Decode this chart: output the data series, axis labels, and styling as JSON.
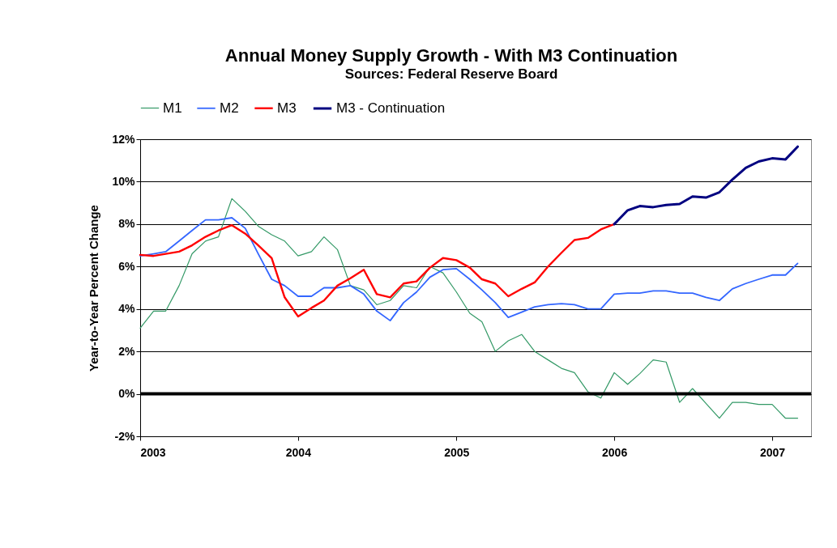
{
  "chart_data": {
    "type": "line",
    "title": "Annual Money Supply Growth - With M3 Continuation",
    "subtitle": "Sources: Federal Reserve Board",
    "ylabel": "Year-to-Year Percent Change",
    "x": [
      "2003-01",
      "2003-02",
      "2003-03",
      "2003-04",
      "2003-05",
      "2003-06",
      "2003-07",
      "2003-08",
      "2003-09",
      "2003-10",
      "2003-11",
      "2003-12",
      "2004-01",
      "2004-02",
      "2004-03",
      "2004-04",
      "2004-05",
      "2004-06",
      "2004-07",
      "2004-08",
      "2004-09",
      "2004-10",
      "2004-11",
      "2004-12",
      "2005-01",
      "2005-02",
      "2005-03",
      "2005-04",
      "2005-05",
      "2005-06",
      "2005-07",
      "2005-08",
      "2005-09",
      "2005-10",
      "2005-11",
      "2005-12",
      "2006-01",
      "2006-02",
      "2006-03",
      "2006-04",
      "2006-05",
      "2006-06",
      "2006-07",
      "2006-08",
      "2006-09",
      "2006-10",
      "2006-11",
      "2006-12",
      "2007-01",
      "2007-02",
      "2007-03"
    ],
    "series": [
      {
        "name": "M1",
        "color": "#339966",
        "values": [
          3.1,
          3.9,
          3.9,
          5.1,
          6.6,
          7.2,
          7.4,
          9.2,
          8.6,
          7.9,
          7.5,
          7.2,
          6.5,
          6.7,
          7.4,
          6.8,
          5.1,
          4.9,
          4.2,
          4.4,
          5.1,
          5.0,
          6.0,
          5.7,
          4.8,
          3.8,
          3.4,
          2.0,
          2.5,
          2.8,
          2.0,
          1.6,
          1.2,
          1.0,
          0.1,
          -0.2,
          1.0,
          0.45,
          0.95,
          1.6,
          1.5,
          -0.4,
          0.25,
          -0.45,
          -1.15,
          -0.4,
          -0.4,
          -0.5,
          -0.5,
          -1.15,
          -1.15
        ]
      },
      {
        "name": "M2",
        "color": "#3366ff",
        "values": [
          6.5,
          6.6,
          6.7,
          7.2,
          7.7,
          8.2,
          8.2,
          8.3,
          7.8,
          6.6,
          5.4,
          5.1,
          4.6,
          4.6,
          5.0,
          5.0,
          5.1,
          4.7,
          3.9,
          3.45,
          4.3,
          4.8,
          5.5,
          5.85,
          5.9,
          5.4,
          4.9,
          4.3,
          3.6,
          3.85,
          4.1,
          4.2,
          4.25,
          4.2,
          4.0,
          4.0,
          4.7,
          4.75,
          4.75,
          4.85,
          4.85,
          4.75,
          4.75,
          4.55,
          4.4,
          4.95,
          5.2,
          5.4,
          5.6,
          5.6,
          6.15
        ]
      },
      {
        "name": "M3",
        "color": "#ff0000",
        "values": [
          6.55,
          6.5,
          6.6,
          6.7,
          7.0,
          7.4,
          7.7,
          7.95,
          7.55,
          7.0,
          6.4,
          4.55,
          3.65,
          4.05,
          4.4,
          5.1,
          5.45,
          5.85,
          4.7,
          4.55,
          5.2,
          5.3,
          5.95,
          6.4,
          6.3,
          5.95,
          5.4,
          5.2,
          4.6,
          4.95,
          5.25,
          6.0,
          6.65,
          7.25,
          7.35,
          7.75,
          8.0,
          null,
          null,
          null,
          null,
          null,
          null,
          null,
          null,
          null,
          null,
          null,
          null,
          null,
          null
        ]
      },
      {
        "name": "M3 - Continuation",
        "color": "#000080",
        "values": [
          null,
          null,
          null,
          null,
          null,
          null,
          null,
          null,
          null,
          null,
          null,
          null,
          null,
          null,
          null,
          null,
          null,
          null,
          null,
          null,
          null,
          null,
          null,
          null,
          null,
          null,
          null,
          null,
          null,
          null,
          null,
          null,
          null,
          null,
          null,
          null,
          8.0,
          8.65,
          8.85,
          8.8,
          8.9,
          8.95,
          9.3,
          9.25,
          9.5,
          10.1,
          10.65,
          10.95,
          11.1,
          11.05,
          11.65
        ]
      }
    ],
    "xlim": [
      "2003-01",
      "2007-04"
    ],
    "xticks": [
      {
        "value": "2003-01",
        "label": "2003"
      },
      {
        "value": "2004-01",
        "label": "2004"
      },
      {
        "value": "2005-01",
        "label": "2005"
      },
      {
        "value": "2006-01",
        "label": "2006"
      },
      {
        "value": "2007-01",
        "label": "2007"
      }
    ],
    "ylim": [
      -2,
      12
    ],
    "yticks": [
      {
        "value": -2,
        "label": "-2%"
      },
      {
        "value": 0,
        "label": "0%"
      },
      {
        "value": 2,
        "label": "2%"
      },
      {
        "value": 4,
        "label": "4%"
      },
      {
        "value": 6,
        "label": "6%"
      },
      {
        "value": 8,
        "label": "8%"
      },
      {
        "value": 10,
        "label": "10%"
      },
      {
        "value": 12,
        "label": "12%"
      }
    ],
    "ref_lines": [
      {
        "axis": "y",
        "value": 0,
        "color": "#000000"
      }
    ],
    "grid": "y",
    "legend": "top",
    "marker": "none",
    "line_style": "solid"
  }
}
